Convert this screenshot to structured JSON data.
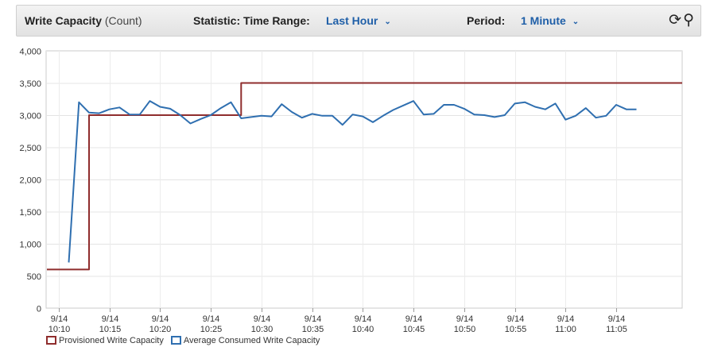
{
  "toolbar": {
    "title": "Write Capacity",
    "unit": "(Count)",
    "statistic_label": "Statistic: Time Range:",
    "time_range": "Last Hour",
    "period_label": "Period:",
    "period": "1 Minute",
    "refresh_icon": "refresh-icon",
    "zoom_out_icon": "zoom-out-icon"
  },
  "chart_data": {
    "type": "line",
    "ylim": [
      0,
      4000
    ],
    "y_ticks": [
      "0",
      "500",
      "1,000",
      "1,500",
      "2,000",
      "2,500",
      "3,000",
      "3,500",
      "4,000"
    ],
    "x_ticks": [
      {
        "date": "9/14",
        "time": "10:10"
      },
      {
        "date": "9/14",
        "time": "10:15"
      },
      {
        "date": "9/14",
        "time": "10:20"
      },
      {
        "date": "9/14",
        "time": "10:25"
      },
      {
        "date": "9/14",
        "time": "10:30"
      },
      {
        "date": "9/14",
        "time": "10:35"
      },
      {
        "date": "9/14",
        "time": "10:40"
      },
      {
        "date": "9/14",
        "time": "10:45"
      },
      {
        "date": "9/14",
        "time": "10:50"
      },
      {
        "date": "9/14",
        "time": "10:55"
      },
      {
        "date": "9/14",
        "time": "11:00"
      },
      {
        "date": "9/14",
        "time": "11:05"
      }
    ],
    "x_range": [
      "10:09",
      "11:06"
    ],
    "series": [
      {
        "name": "Provisioned Write Capacity",
        "color": "#8f2d2d",
        "step": true,
        "points": [
          [
            "10:09",
            600
          ],
          [
            "10:13",
            600
          ],
          [
            "10:13",
            3000
          ],
          [
            "10:28",
            3000
          ],
          [
            "10:28",
            3500
          ],
          [
            "11:06",
            3500
          ]
        ]
      },
      {
        "name": "Average Consumed Write Capacity",
        "color": "#2f6fb0",
        "step": false,
        "points": [
          [
            "10:11",
            710
          ],
          [
            "10:12",
            3200
          ],
          [
            "10:13",
            3040
          ],
          [
            "10:14",
            3030
          ],
          [
            "10:15",
            3090
          ],
          [
            "10:16",
            3120
          ],
          [
            "10:17",
            3010
          ],
          [
            "10:18",
            3010
          ],
          [
            "10:19",
            3220
          ],
          [
            "10:20",
            3130
          ],
          [
            "10:21",
            3100
          ],
          [
            "10:22",
            3000
          ],
          [
            "10:23",
            2870
          ],
          [
            "10:24",
            2940
          ],
          [
            "10:25",
            3000
          ],
          [
            "10:26",
            3110
          ],
          [
            "10:27",
            3200
          ],
          [
            "10:28",
            2950
          ],
          [
            "10:29",
            2970
          ],
          [
            "10:30",
            2990
          ],
          [
            "10:31",
            2980
          ],
          [
            "10:32",
            3170
          ],
          [
            "10:33",
            3050
          ],
          [
            "10:34",
            2960
          ],
          [
            "10:35",
            3020
          ],
          [
            "10:36",
            2990
          ],
          [
            "10:37",
            2990
          ],
          [
            "10:38",
            2850
          ],
          [
            "10:39",
            3010
          ],
          [
            "10:40",
            2980
          ],
          [
            "10:41",
            2890
          ],
          [
            "10:42",
            2990
          ],
          [
            "10:43",
            3080
          ],
          [
            "10:44",
            3150
          ],
          [
            "10:45",
            3220
          ],
          [
            "10:46",
            3010
          ],
          [
            "10:47",
            3020
          ],
          [
            "10:48",
            3160
          ],
          [
            "10:49",
            3160
          ],
          [
            "10:50",
            3100
          ],
          [
            "10:51",
            3010
          ],
          [
            "10:52",
            3000
          ],
          [
            "10:53",
            2970
          ],
          [
            "10:54",
            3000
          ],
          [
            "10:55",
            3180
          ],
          [
            "10:56",
            3200
          ],
          [
            "10:57",
            3130
          ],
          [
            "10:58",
            3090
          ],
          [
            "10:59",
            3180
          ],
          [
            "11:00",
            2930
          ],
          [
            "11:01",
            2990
          ],
          [
            "11:02",
            3110
          ],
          [
            "11:03",
            2960
          ],
          [
            "11:04",
            2990
          ],
          [
            "11:05",
            3160
          ],
          [
            "11:06",
            3090
          ],
          [
            "11:07",
            3090
          ]
        ]
      }
    ],
    "grid": true,
    "legend_position": "bottom-left"
  },
  "legend": {
    "items": [
      {
        "label": "Provisioned Write Capacity",
        "color": "#8f2d2d"
      },
      {
        "label": "Average Consumed Write Capacity",
        "color": "#2f6fb0"
      }
    ]
  }
}
